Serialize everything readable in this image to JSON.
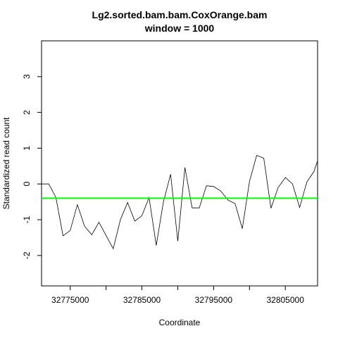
{
  "chart_data": {
    "type": "line",
    "title": "Lg2.sorted.bam.bam.CoxOrange.bam",
    "subtitle": "window = 1000",
    "xlabel": "Coordinate",
    "ylabel": "Standardized read count",
    "xlim": [
      32771000,
      32809500
    ],
    "ylim": [
      -2.85,
      4.0
    ],
    "x_ticks": [
      32775000,
      32780000,
      32785000,
      32790000,
      32795000,
      32800000,
      32805000
    ],
    "x_tick_labels": [
      "32775000",
      "",
      "32785000",
      "",
      "32795000",
      "",
      "32805000"
    ],
    "y_ticks": [
      -2,
      -1,
      0,
      1,
      2,
      3
    ],
    "y_tick_labels": [
      "-2",
      "-1",
      "0",
      "1",
      "2",
      "3"
    ],
    "grid": false,
    "series": [
      {
        "color": "#000000",
        "x": [
          32771000,
          32772000,
          32773000,
          32774000,
          32775000,
          32776000,
          32777000,
          32778000,
          32779000,
          32780000,
          32781000,
          32782000,
          32783000,
          32784000,
          32785000,
          32786000,
          32787000,
          32788000,
          32789000,
          32790000,
          32791000,
          32792000,
          32793000,
          32794000,
          32795000,
          32796000,
          32797000,
          32798000,
          32799000,
          32800000,
          32801000,
          32802000,
          32803000,
          32804000,
          32805000,
          32806000,
          32807000,
          32808000,
          32809000,
          32809500
        ],
        "y": [
          0.0,
          0.0,
          -0.38,
          -1.45,
          -1.3,
          -0.58,
          -1.18,
          -1.42,
          -1.07,
          -1.44,
          -1.81,
          -1.0,
          -0.52,
          -1.04,
          -0.89,
          -0.38,
          -1.72,
          -0.5,
          0.27,
          -1.6,
          0.46,
          -0.67,
          -0.67,
          -0.05,
          -0.07,
          -0.2,
          -0.45,
          -0.55,
          -1.25,
          0.07,
          0.8,
          0.72,
          -0.68,
          -0.1,
          0.18,
          0.0,
          -0.66,
          0.05,
          0.35,
          0.65
        ]
      }
    ],
    "hline": {
      "y": -0.4,
      "color": "#00ff00"
    }
  }
}
